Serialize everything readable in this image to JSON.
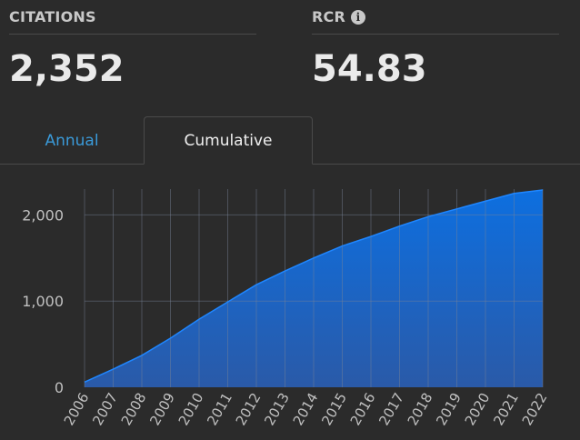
{
  "stats": {
    "citations": {
      "label": "CITATIONS",
      "value": "2,352"
    },
    "rcr": {
      "label": "RCR",
      "info_icon": "info-icon",
      "value": "54.83"
    }
  },
  "tabs": [
    {
      "label": "Annual",
      "active": false
    },
    {
      "label": "Cumulative",
      "active": true
    }
  ],
  "colors": {
    "background": "#2b2b2b",
    "accent": "#3a9ad9",
    "area_top": "#0d6fe0",
    "area_bottom": "#2a5aa8"
  },
  "chart_data": {
    "type": "area",
    "x": [
      "2006",
      "2007",
      "2008",
      "2009",
      "2010",
      "2011",
      "2012",
      "2013",
      "2014",
      "2015",
      "2016",
      "2017",
      "2018",
      "2019",
      "2020",
      "2021",
      "2022"
    ],
    "series": [
      {
        "values": [
          60,
          210,
          370,
          570,
          790,
          990,
          1190,
          1350,
          1500,
          1640,
          1750,
          1870,
          1980,
          2070,
          2160,
          2250,
          2290
        ]
      }
    ],
    "y_ticks": [
      0,
      1000,
      2000
    ],
    "y_tick_labels": [
      "0",
      "1,000",
      "2,000"
    ],
    "ylim": [
      0,
      2300
    ],
    "grid": true
  }
}
